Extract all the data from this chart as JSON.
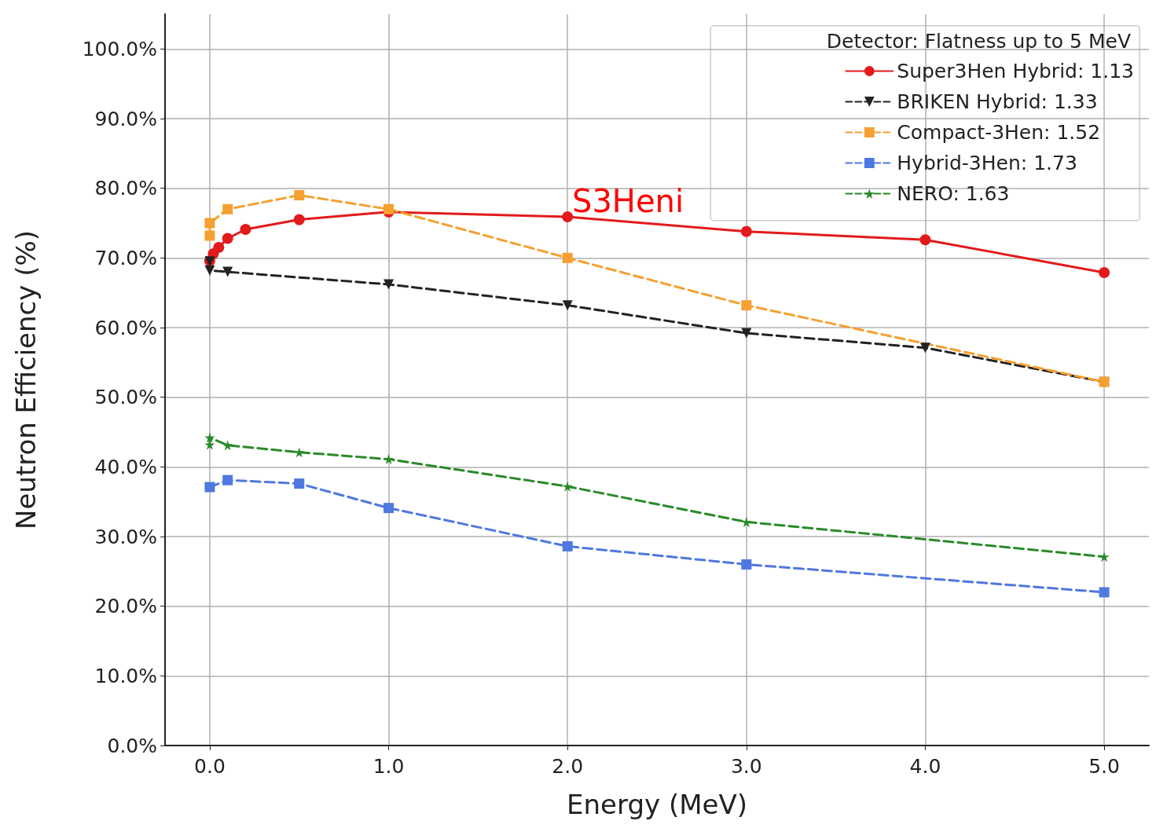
{
  "chart_data": {
    "type": "line",
    "xlabel": "Energy (MeV)",
    "ylabel": "Neutron Efficiency (%)",
    "legend_title": "Detector: Flatness up to 5 MeV",
    "legend": "top right",
    "grid": true,
    "xlim": [
      -0.25,
      5.25
    ],
    "ylim": [
      0,
      105
    ],
    "xticks": [
      {
        "value": 0,
        "label": "0.0"
      },
      {
        "value": 1,
        "label": "1.0"
      },
      {
        "value": 2,
        "label": "2.0"
      },
      {
        "value": 3,
        "label": "3.0"
      },
      {
        "value": 4,
        "label": "4.0"
      },
      {
        "value": 5,
        "label": "5.0"
      }
    ],
    "yticks": [
      {
        "value": 0,
        "label": "0.0%"
      },
      {
        "value": 10,
        "label": "10.0%"
      },
      {
        "value": 20,
        "label": "20.0%"
      },
      {
        "value": 30,
        "label": "30.0%"
      },
      {
        "value": 40,
        "label": "40.0%"
      },
      {
        "value": 50,
        "label": "50.0%"
      },
      {
        "value": 60,
        "label": "60.0%"
      },
      {
        "value": 70,
        "label": "70.0%"
      },
      {
        "value": 80,
        "label": "80.0%"
      },
      {
        "value": 90,
        "label": "90.0%"
      },
      {
        "value": 100,
        "label": "100.0%"
      }
    ],
    "annotations": [
      "S3Heni"
    ],
    "series": [
      {
        "name": "Super3Hen Hybrid: 1.13",
        "color": "#e31a1c",
        "marker": "circle",
        "line_style": "solid",
        "x": [
          0,
          0.02,
          0.05,
          0.1,
          0.2,
          0.5,
          1,
          2,
          3,
          4,
          5
        ],
        "values": [
          69.6,
          70.6,
          71.5,
          72.8,
          74.1,
          75.5,
          76.6,
          75.9,
          73.8,
          72.6,
          67.9
        ]
      },
      {
        "name": "BRIKEN Hybrid: 1.33",
        "color": "#222222",
        "marker": "triangle",
        "line_style": "dashed",
        "x": [
          0,
          0,
          0.1,
          1,
          2,
          3,
          4,
          5
        ],
        "values": [
          69.5,
          68.2,
          68,
          66.2,
          63.2,
          59.2,
          57.1,
          52.2
        ]
      },
      {
        "name": "Compact-3Hen: 1.52",
        "color": "#f5a030",
        "marker": "square",
        "line_style": "dashed",
        "x": [
          0,
          0,
          0.1,
          0.5,
          1,
          2,
          3,
          5
        ],
        "values": [
          73.2,
          75,
          77,
          79,
          77,
          70,
          63.2,
          52.2
        ]
      },
      {
        "name": "Hybrid-3Hen: 1.73",
        "color": "#4f78e0",
        "marker": "square",
        "line_style": "dashed",
        "x": [
          0,
          0.1,
          0.5,
          1,
          2,
          3,
          5
        ],
        "values": [
          37.1,
          38.1,
          37.6,
          34.1,
          28.6,
          26,
          22
        ]
      },
      {
        "name": "NERO: 1.63",
        "color": "#2a8a2a",
        "marker": "star",
        "line_style": "dashed",
        "x": [
          0,
          0,
          0.1,
          0.5,
          1,
          2,
          3,
          5
        ],
        "values": [
          43.2,
          44.2,
          43.1,
          42.1,
          41.1,
          37.2,
          32.1,
          27.1
        ]
      }
    ]
  }
}
